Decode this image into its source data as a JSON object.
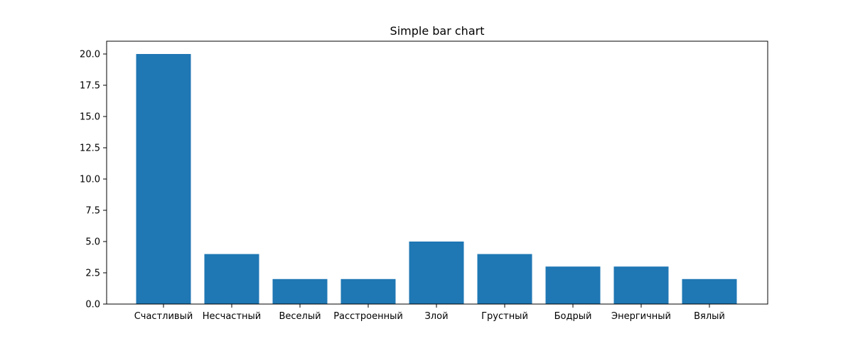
{
  "colors": {
    "bar": "#1f77b4",
    "axis": "#000000",
    "background": "#ffffff"
  },
  "chart_data": {
    "type": "bar",
    "title": "Simple bar chart",
    "xlabel": "",
    "ylabel": "",
    "categories": [
      "Счастливый",
      "Несчастный",
      "Веселый",
      "Расстроенный",
      "Злой",
      "Грустный",
      "Бодрый",
      "Энергичный",
      "Вялый"
    ],
    "values": [
      20,
      4,
      2,
      2,
      5,
      4,
      3,
      3,
      2
    ],
    "ylim": [
      0,
      21
    ],
    "yticks": [
      "0.0",
      "2.5",
      "5.0",
      "7.5",
      "10.0",
      "12.5",
      "15.0",
      "17.5",
      "20.0"
    ],
    "grid": false,
    "legend": "none"
  }
}
